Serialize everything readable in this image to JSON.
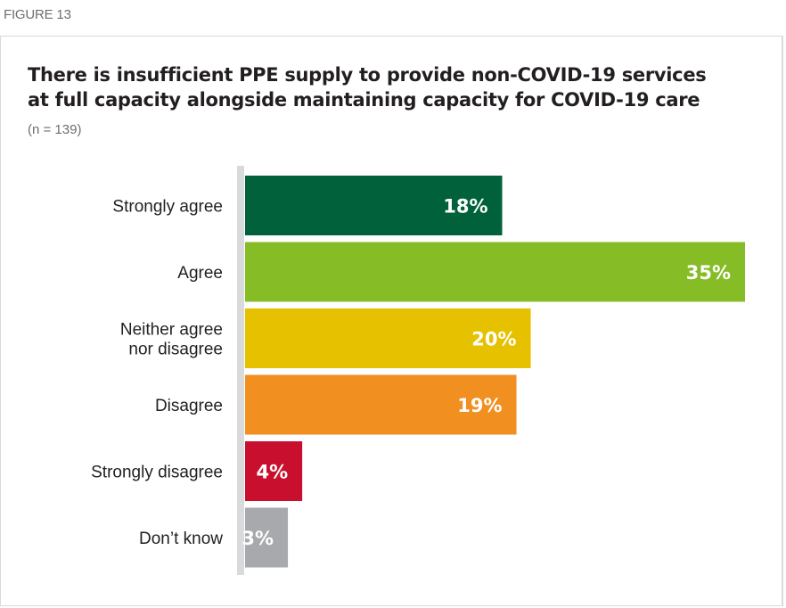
{
  "figure_label": "FIGURE 13",
  "chart_data": {
    "type": "bar",
    "orientation": "horizontal",
    "title": "There is insufficient PPE supply to provide non-COVID-19 services at full capacity alongside maintaining capacity for COVID-19 care",
    "title_lines": [
      "There is insufficient PPE supply to provide non-COVID-19 services",
      "at full capacity alongside maintaining capacity for COVID-19 care"
    ],
    "subtitle": "(n = 139)",
    "categories": [
      [
        "Strongly agree"
      ],
      [
        "Agree"
      ],
      [
        "Neither agree",
        "nor disagree"
      ],
      [
        "Disagree"
      ],
      [
        "Strongly disagree"
      ],
      [
        "Don’t know"
      ]
    ],
    "values": [
      18,
      35,
      20,
      19,
      4,
      3
    ],
    "value_labels": [
      "18%",
      "35%",
      "20%",
      "19%",
      "4%",
      "3%"
    ],
    "colors": [
      "#00613a",
      "#86bc25",
      "#e5c100",
      "#f18f21",
      "#c8102e",
      "#a7a9ac"
    ],
    "axis_color": "#d9dadb",
    "xlim": [
      0,
      35
    ],
    "grid": false
  }
}
